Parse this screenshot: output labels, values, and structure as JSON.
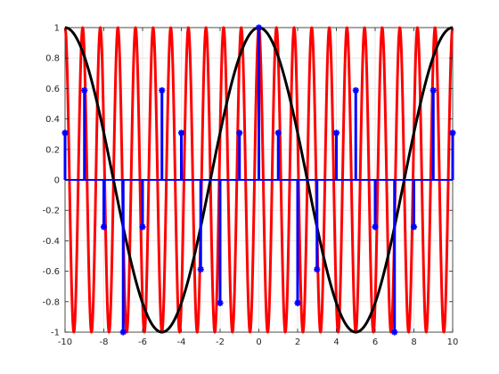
{
  "chart_data": {
    "type": "line",
    "title": "",
    "xlabel": "",
    "ylabel": "",
    "xlim": [
      -10,
      10
    ],
    "ylim": [
      -1,
      1
    ],
    "grid": true,
    "x_ticks": [
      -10,
      -8,
      -6,
      -4,
      -2,
      0,
      2,
      4,
      6,
      8,
      10
    ],
    "x_tick_labels": [
      "-10",
      "-8",
      "-6",
      "-4",
      "-2",
      "0",
      "2",
      "4",
      "6",
      "8",
      "10"
    ],
    "y_ticks": [
      -1,
      -0.8,
      -0.6,
      -0.4,
      -0.2,
      0,
      0.2,
      0.4,
      0.6,
      0.8,
      1
    ],
    "y_tick_labels": [
      "-1",
      "-0.8",
      "-0.6",
      "-0.4",
      "-0.2",
      "0",
      "0.2",
      "0.4",
      "0.6",
      "0.8",
      "1"
    ],
    "series": [
      {
        "kind": "curve",
        "color": "#ff0000",
        "function": "cos(2*pi*1.1*x)",
        "x_range": [
          -10,
          10
        ],
        "samples": 2001
      },
      {
        "kind": "curve",
        "color": "#000000",
        "function": "cos(2*pi*0.1*x)",
        "x_range": [
          -10,
          10
        ],
        "samples": 801
      },
      {
        "kind": "stem",
        "color": "#0000ff",
        "marker": "asterisk",
        "x": [
          -10,
          -9,
          -8,
          -7,
          -6,
          -5,
          -4,
          -3,
          -2,
          -1,
          0,
          1,
          2,
          3,
          4,
          5,
          6,
          7,
          8,
          9,
          10
        ],
        "y": [
          0.309,
          0.588,
          -0.309,
          -1.0,
          -0.309,
          0.588,
          0.309,
          -0.588,
          -0.809,
          0.309,
          1.0,
          0.309,
          -0.809,
          -0.588,
          0.309,
          0.588,
          -0.309,
          -1.0,
          -0.309,
          0.588,
          0.309
        ]
      }
    ]
  }
}
